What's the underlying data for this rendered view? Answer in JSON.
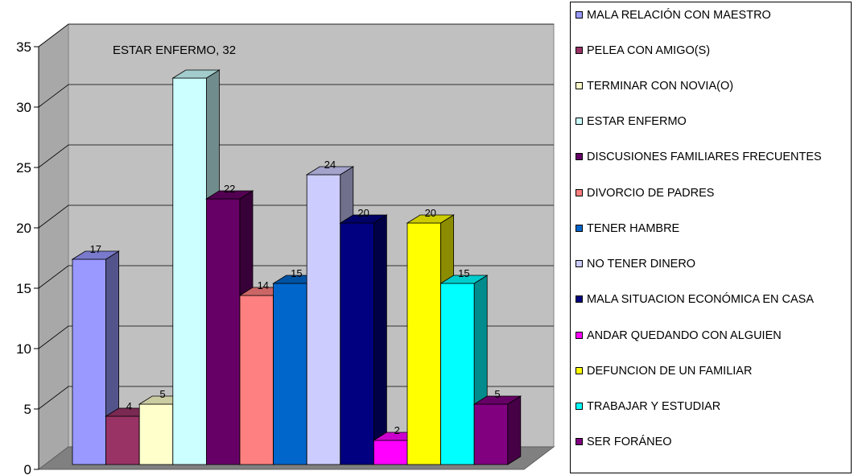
{
  "chart_data": {
    "type": "bar",
    "subtype": "3d-clustered-column",
    "annotation": "ESTAR ENFERMO, 32",
    "ylim": [
      0,
      35
    ],
    "yticks": [
      0,
      5,
      10,
      15,
      20,
      25,
      30,
      35
    ],
    "grid": true,
    "legend_position": "right",
    "series": [
      {
        "name": "MALA RELACIÓN CON MAESTRO",
        "value": 17,
        "color": "#9999FF"
      },
      {
        "name": "PELEA CON AMIGO(S)",
        "value": 4,
        "color": "#993366"
      },
      {
        "name": "TERMINAR CON NOVIA(O)",
        "value": 5,
        "color": "#FFFFCC"
      },
      {
        "name": "ESTAR ENFERMO",
        "value": 32,
        "color": "#CCFFFF"
      },
      {
        "name": "DISCUSIONES FAMILIARES FRECUENTES",
        "value": 22,
        "color": "#660066"
      },
      {
        "name": "DIVORCIO DE PADRES",
        "value": 14,
        "color": "#FF8080"
      },
      {
        "name": "TENER HAMBRE",
        "value": 15,
        "color": "#0066CC"
      },
      {
        "name": "NO TENER DINERO",
        "value": 24,
        "color": "#CCCCFF"
      },
      {
        "name": "MALA SITUACION ECONÓMICA EN CASA",
        "value": 20,
        "color": "#000080"
      },
      {
        "name": "ANDAR QUEDANDO CON ALGUIEN",
        "value": 2,
        "color": "#FF00FF"
      },
      {
        "name": "DEFUNCION DE UN FAMILIAR",
        "value": 20,
        "color": "#FFFF00"
      },
      {
        "name": "TRABAJAR Y ESTUDIAR",
        "value": 15,
        "color": "#00FFFF"
      },
      {
        "name": "SER FORÁNEO",
        "value": 5,
        "color": "#800080"
      }
    ]
  }
}
